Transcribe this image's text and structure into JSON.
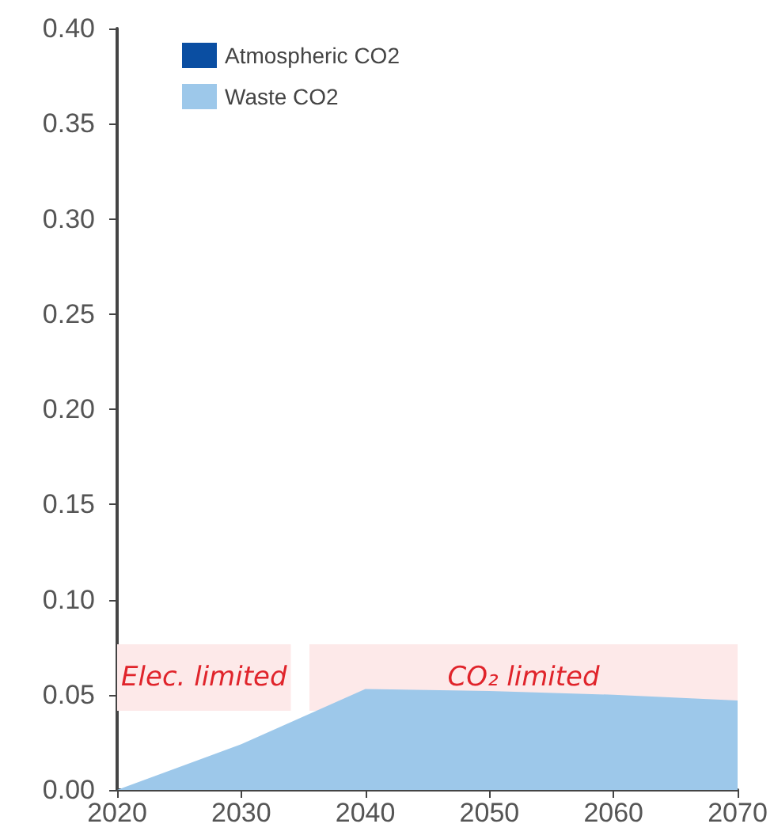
{
  "chart_data": {
    "type": "area",
    "x": [
      2020,
      2030,
      2040,
      2050,
      2060,
      2070
    ],
    "series": [
      {
        "name": "Waste CO2",
        "color": "#9dc8ea",
        "values": [
          0,
          0.024,
          0.053,
          0.052,
          0.05,
          0.047
        ]
      },
      {
        "name": "Atmospheric CO2",
        "color": "#0a4ea2",
        "values": [
          null,
          null,
          null,
          null,
          null,
          null
        ]
      }
    ],
    "xlim": [
      2020,
      2070
    ],
    "xticks": [
      2020,
      2030,
      2040,
      2050,
      2060,
      2070
    ],
    "ylim": [
      0,
      0.4
    ],
    "yticks": [
      {
        "value": 0,
        "label": "0.00"
      },
      {
        "value": 0.05,
        "label": "0.05"
      },
      {
        "value": 0.1,
        "label": "0.10"
      },
      {
        "value": 0.15,
        "label": "0.15"
      },
      {
        "value": 0.2,
        "label": "0.20"
      },
      {
        "value": 0.25,
        "label": "0.25"
      },
      {
        "value": 0.3,
        "label": "0.30"
      },
      {
        "value": 0.35,
        "label": "0.35"
      },
      {
        "value": 0.4,
        "label": "0.40"
      }
    ],
    "bands": [
      {
        "axis": "x",
        "from": 2020,
        "to": 2034,
        "label": "Elec. limited",
        "color": "#fde9e9"
      },
      {
        "axis": "x",
        "from": 2035.5,
        "to": 2070,
        "label": "CO₂ limited",
        "color": "#fde9e9"
      }
    ],
    "grid": false,
    "legend": "top left"
  }
}
